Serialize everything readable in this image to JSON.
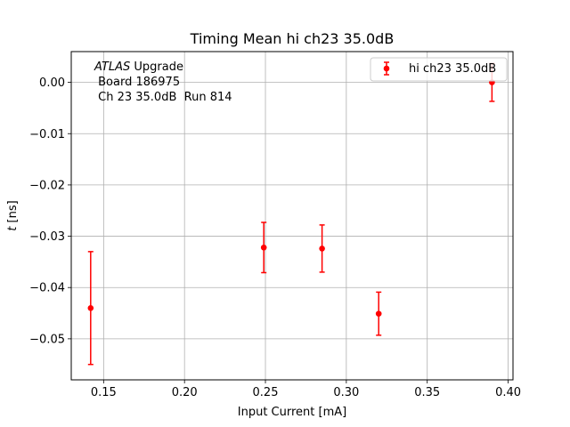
{
  "chart_data": {
    "type": "scatter",
    "title": "Timing Mean hi ch23 35.0dB",
    "xlabel": "Input Current [mA]",
    "ylabel": "t [ns]",
    "ylabel_symbol": "t",
    "ylabel_unit": "[ns]",
    "xlim": [
      0.13,
      0.403
    ],
    "ylim": [
      -0.058,
      0.006
    ],
    "x_ticks": [
      0.15,
      0.2,
      0.25,
      0.3,
      0.35,
      0.4
    ],
    "x_tick_labels": [
      "0.15",
      "0.20",
      "0.25",
      "0.30",
      "0.35",
      "0.40"
    ],
    "y_ticks": [
      0.0,
      -0.01,
      -0.02,
      -0.03,
      -0.04,
      -0.05
    ],
    "y_tick_labels": [
      "0.00",
      "−0.01",
      "−0.02",
      "−0.03",
      "−0.04",
      "−0.05"
    ],
    "grid": true,
    "legend_position": "top-right",
    "annotation": {
      "atlas": "ATLAS",
      "line1_rest": " Upgrade",
      "line2": " Board 186975",
      "line3": " Ch 23 35.0dB  Run 814"
    },
    "series": [
      {
        "name": "hi ch23 35.0dB",
        "color": "#ff0000",
        "x": [
          0.142,
          0.249,
          0.285,
          0.32,
          0.39
        ],
        "y": [
          -0.044,
          -0.0322,
          -0.0324,
          -0.0451,
          0.0
        ],
        "yerr": [
          0.011,
          0.0049,
          0.0046,
          0.0042,
          0.0037
        ]
      }
    ]
  }
}
